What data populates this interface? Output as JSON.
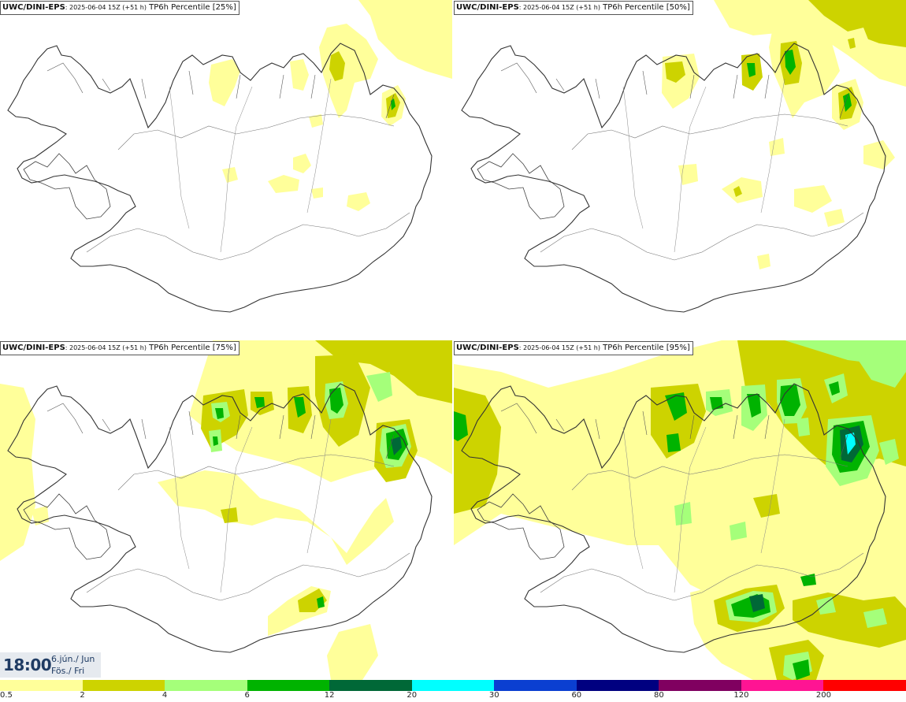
{
  "panels": [
    {
      "model": "UWC/DINI-EPS",
      "run": ": 2025-06-04 15Z (+51 h)",
      "field": " TP6h Percentile [25%]"
    },
    {
      "model": "UWC/DINI-EPS",
      "run": ": 2025-06-04 15Z (+51 h)",
      "field": " TP6h Percentile [50%]"
    },
    {
      "model": "UWC/DINI-EPS",
      "run": ": 2025-06-04 15Z (+51 h)",
      "field": " TP6h Percentile [75%]"
    },
    {
      "model": "UWC/DINI-EPS",
      "run": ": 2025-06-04 15Z (+51 h)",
      "field": " TP6h Percentile [95%]"
    }
  ],
  "valid_time": {
    "time": "18:00",
    "date": "6.jún./ Jun",
    "weekday": "Fös./ Fri"
  },
  "colorbar": {
    "colors": [
      "#ffff9a",
      "#cdd300",
      "#a5ff7a",
      "#00b300",
      "#006837",
      "#00ffff",
      "#0b3fd1",
      "#000080",
      "#800060",
      "#ff1493",
      "#ff0000"
    ],
    "labels": [
      "0.5",
      "2",
      "4",
      "6",
      "12",
      "20",
      "30",
      "60",
      "80",
      "120",
      "200"
    ]
  }
}
